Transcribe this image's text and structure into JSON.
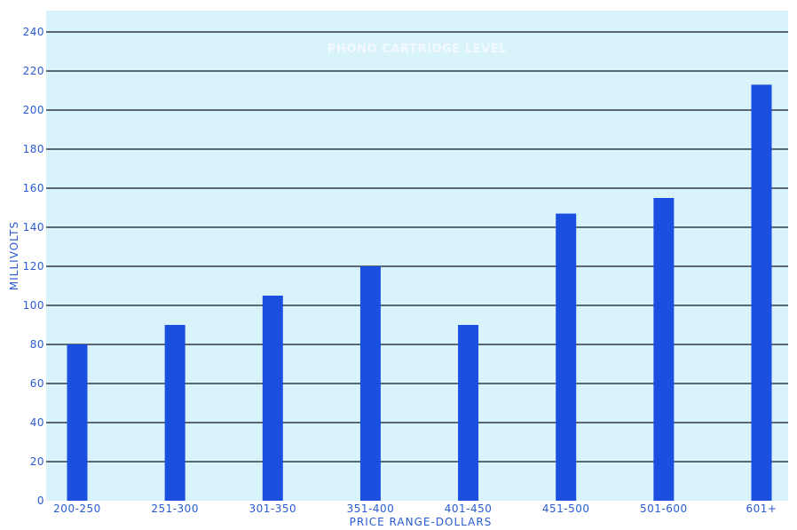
{
  "chart_data": {
    "type": "bar",
    "title": "PHONO CARTRIDGE LEVEL",
    "xlabel": "PRICE RANGE-DOLLARS",
    "ylabel": "MILLIVOLTS",
    "categories": [
      "200-250",
      "251-300",
      "301-350",
      "351-400",
      "401-450",
      "451-500",
      "501-600",
      "601+"
    ],
    "values": [
      80,
      90,
      105,
      120,
      90,
      147,
      155,
      213
    ],
    "yticks": [
      0,
      20,
      40,
      60,
      80,
      100,
      120,
      140,
      160,
      180,
      200,
      220,
      240
    ],
    "ylim": [
      0,
      240
    ],
    "grid": true,
    "legend": "none",
    "colors": {
      "bar": "#1a4fe0",
      "plot_background": "#d9f3fb",
      "gridline": "#0d1420",
      "text": "#2a5bd0"
    }
  }
}
